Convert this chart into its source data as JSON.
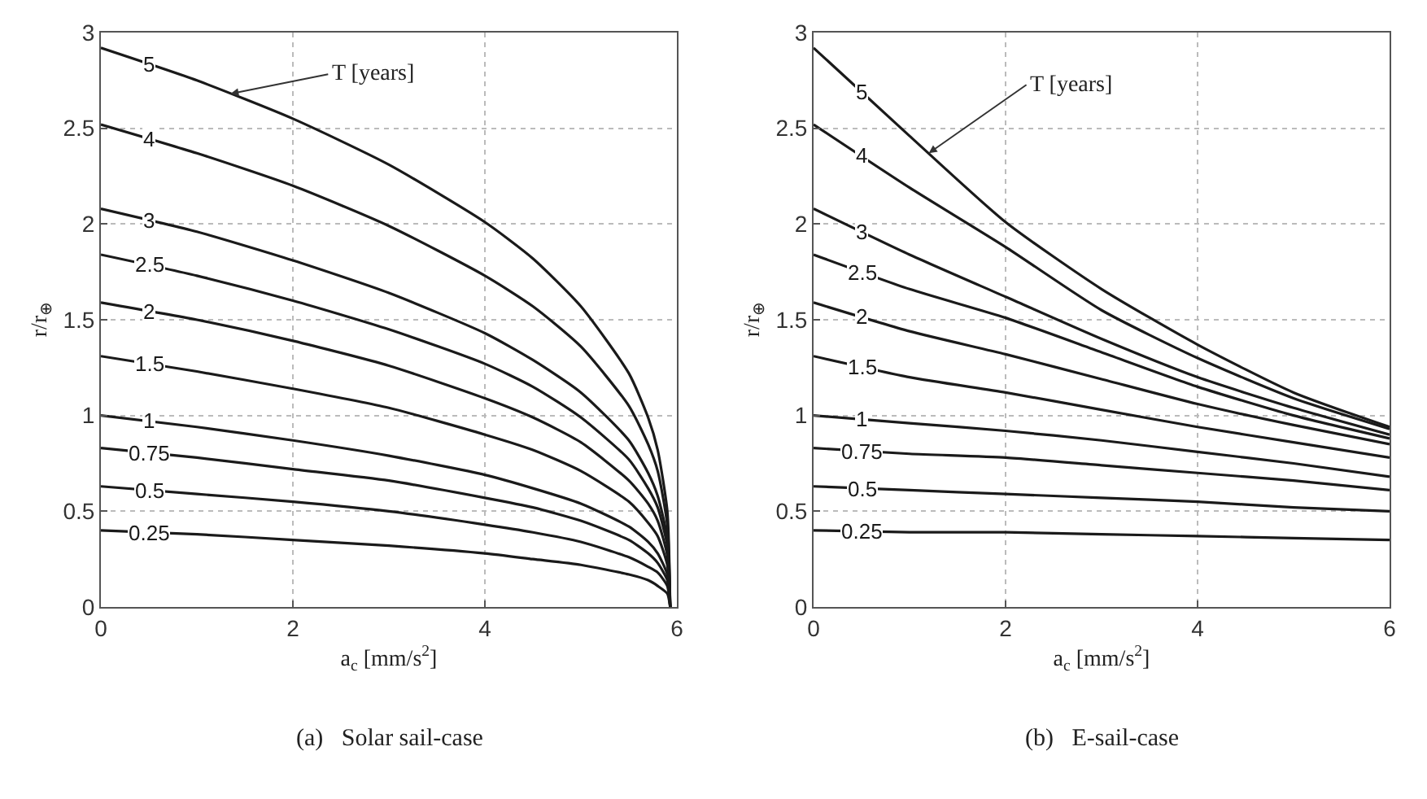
{
  "chart_data": [
    {
      "type": "line",
      "xlabel": "a$_{c}$ [mm/s$^{2}$]",
      "ylabel": "r/r$_{⊕}$",
      "xlim": [
        0,
        6
      ],
      "xticks": [
        0,
        2,
        4,
        6
      ],
      "ylim": [
        0,
        3
      ],
      "yticks": [
        0,
        0.5,
        1,
        1.5,
        2,
        2.5,
        3
      ],
      "grid": true,
      "x": [
        0,
        1,
        2,
        3,
        4,
        4.5,
        5,
        5.5,
        5.7,
        5.8,
        5.9,
        5.93
      ],
      "series": [
        {
          "name": "5",
          "color": "#1a1a1a",
          "values": [
            2.92,
            2.75,
            2.55,
            2.31,
            2.01,
            1.82,
            1.57,
            1.22,
            0.99,
            0.82,
            0.5,
            0
          ]
        },
        {
          "name": "4",
          "color": "#1a1a1a",
          "values": [
            2.52,
            2.37,
            2.2,
            1.99,
            1.73,
            1.57,
            1.36,
            1.05,
            0.85,
            0.71,
            0.43,
            0
          ]
        },
        {
          "name": "3",
          "color": "#1a1a1a",
          "values": [
            2.08,
            1.96,
            1.81,
            1.64,
            1.43,
            1.29,
            1.12,
            0.87,
            0.7,
            0.58,
            0.36,
            0
          ]
        },
        {
          "name": "2.5",
          "color": "#1a1a1a",
          "values": [
            1.84,
            1.73,
            1.6,
            1.45,
            1.27,
            1.15,
            0.99,
            0.77,
            0.62,
            0.52,
            0.32,
            0
          ]
        },
        {
          "name": "2",
          "color": "#1a1a1a",
          "values": [
            1.59,
            1.5,
            1.39,
            1.26,
            1.09,
            0.99,
            0.86,
            0.66,
            0.54,
            0.45,
            0.27,
            0
          ]
        },
        {
          "name": "1.5",
          "color": "#1a1a1a",
          "values": [
            1.31,
            1.23,
            1.14,
            1.04,
            0.9,
            0.82,
            0.71,
            0.55,
            0.44,
            0.37,
            0.22,
            0
          ]
        },
        {
          "name": "1",
          "color": "#1a1a1a",
          "values": [
            1,
            0.94,
            0.87,
            0.79,
            0.69,
            0.62,
            0.54,
            0.42,
            0.34,
            0.28,
            0.17,
            0
          ]
        },
        {
          "name": "0.75",
          "color": "#1a1a1a",
          "values": [
            0.83,
            0.78,
            0.72,
            0.66,
            0.57,
            0.52,
            0.45,
            0.35,
            0.28,
            0.23,
            0.14,
            0
          ]
        },
        {
          "name": "0.5",
          "color": "#1a1a1a",
          "values": [
            0.63,
            0.59,
            0.55,
            0.5,
            0.43,
            0.39,
            0.34,
            0.26,
            0.21,
            0.18,
            0.11,
            0
          ]
        },
        {
          "name": "0.25",
          "color": "#1a1a1a",
          "values": [
            0.4,
            0.38,
            0.35,
            0.32,
            0.28,
            0.25,
            0.22,
            0.17,
            0.14,
            0.11,
            0.07,
            0
          ]
        }
      ],
      "annotations": [
        {
          "text": "T [years]",
          "x": 1.35,
          "y": 2.68
        },
        "(a)   Solar sail-case"
      ]
    },
    {
      "type": "line",
      "xlabel": "a$_{c}$ [mm/s$^{2}$]",
      "ylabel": "r/r$_{⊕}$",
      "xlim": [
        0,
        6
      ],
      "xticks": [
        0,
        2,
        4,
        6
      ],
      "ylim": [
        0,
        3
      ],
      "yticks": [
        0,
        0.5,
        1,
        1.5,
        2,
        2.5,
        3
      ],
      "grid": true,
      "x": [
        0,
        1,
        2,
        3,
        4,
        5,
        6
      ],
      "series": [
        {
          "name": "5",
          "color": "#1a1a1a",
          "values": [
            2.92,
            2.46,
            2.01,
            1.66,
            1.37,
            1.12,
            0.94
          ]
        },
        {
          "name": "4",
          "color": "#1a1a1a",
          "values": [
            2.52,
            2.19,
            1.88,
            1.55,
            1.3,
            1.09,
            0.93
          ]
        },
        {
          "name": "3",
          "color": "#1a1a1a",
          "values": [
            2.08,
            1.84,
            1.62,
            1.4,
            1.2,
            1.04,
            0.9
          ]
        },
        {
          "name": "2.5",
          "color": "#1a1a1a",
          "values": [
            1.84,
            1.66,
            1.51,
            1.33,
            1.15,
            1,
            0.88
          ]
        },
        {
          "name": "2",
          "color": "#1a1a1a",
          "values": [
            1.59,
            1.44,
            1.32,
            1.19,
            1.06,
            0.95,
            0.85
          ]
        },
        {
          "name": "1.5",
          "color": "#1a1a1a",
          "values": [
            1.31,
            1.2,
            1.12,
            1.03,
            0.94,
            0.86,
            0.78
          ]
        },
        {
          "name": "1",
          "color": "#1a1a1a",
          "values": [
            1,
            0.96,
            0.92,
            0.87,
            0.81,
            0.75,
            0.68
          ]
        },
        {
          "name": "0.75",
          "color": "#1a1a1a",
          "values": [
            0.83,
            0.8,
            0.78,
            0.74,
            0.7,
            0.66,
            0.61
          ]
        },
        {
          "name": "0.5",
          "color": "#1a1a1a",
          "values": [
            0.63,
            0.61,
            0.59,
            0.57,
            0.55,
            0.52,
            0.5
          ]
        },
        {
          "name": "0.25",
          "color": "#1a1a1a",
          "values": [
            0.4,
            0.39,
            0.39,
            0.38,
            0.37,
            0.36,
            0.35
          ]
        }
      ],
      "annotations": [
        {
          "text": "T [years]",
          "x": 1.2,
          "y": 2.37
        },
        "(b)   E-sail-case"
      ]
    }
  ]
}
